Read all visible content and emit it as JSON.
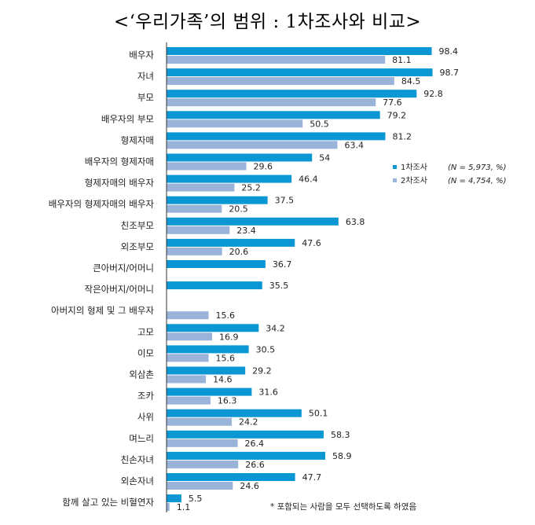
{
  "title": "<‘우리가족’의 범위 : 1차조사와 비교>",
  "chart_data": {
    "type": "bar",
    "orientation": "horizontal",
    "title": "<‘우리가족’의 범위 : 1차조사와 비교>",
    "categories": [
      "배우자",
      "자녀",
      "부모",
      "배우자의 부모",
      "형제자매",
      "배우자의 형제자매",
      "형제자매의 배우자",
      "배우자의 형제자매의 배우자",
      "친조부모",
      "외조부모",
      "큰아버지/어머니",
      "작은아버지/어머니",
      "아버지의 형제 및 그 배우자",
      "고모",
      "이모",
      "외삼촌",
      "조카",
      "사위",
      "며느리",
      "친손자녀",
      "외손자녀",
      "함께 살고 있는 비혈연자"
    ],
    "series": [
      {
        "name": "1차조사",
        "note": "(N = 5,973, %)",
        "color": "#0a97d4",
        "values": [
          98.4,
          98.7,
          92.8,
          79.2,
          81.2,
          54,
          46.4,
          37.5,
          63.8,
          47.6,
          36.7,
          35.5,
          null,
          34.2,
          30.5,
          29.2,
          31.6,
          50.1,
          58.3,
          58.9,
          47.7,
          5.5
        ]
      },
      {
        "name": "2차조사",
        "note": "(N = 4,754, %)",
        "color": "#99b3d9",
        "values": [
          81.1,
          84.5,
          77.6,
          50.5,
          63.4,
          29.6,
          25.2,
          20.5,
          23.4,
          20.6,
          null,
          null,
          15.6,
          16.9,
          15.6,
          14.6,
          16.3,
          24.2,
          26.4,
          26.6,
          24.6,
          1.1
        ]
      }
    ],
    "value_labels": [
      [
        "98.4",
        "98.7",
        "92.8",
        "79.2",
        "81.2",
        "54",
        "46.4",
        "37.5",
        "63.8",
        "47.6",
        "36.7",
        "35.5",
        null,
        "34.2",
        "30.5",
        "29.2",
        "31.6",
        "50.1",
        "58.3",
        "58.9",
        "47.7",
        "5.5"
      ],
      [
        "81.1",
        "84.5",
        "77.6",
        "50.5",
        "63.4",
        "29.6",
        "25.2",
        "20.5",
        "23.4",
        "20.6",
        null,
        null,
        "15.6",
        "16.9",
        "15.6",
        "14.6",
        "16.3",
        "24.2",
        "26.4",
        "26.6",
        "24.6",
        "1.1"
      ]
    ],
    "xlim": [
      0,
      100
    ],
    "grid": false,
    "legend_position": "right"
  },
  "footnote": "* 포함되는 사람을 모두 선택하도록 하였음"
}
